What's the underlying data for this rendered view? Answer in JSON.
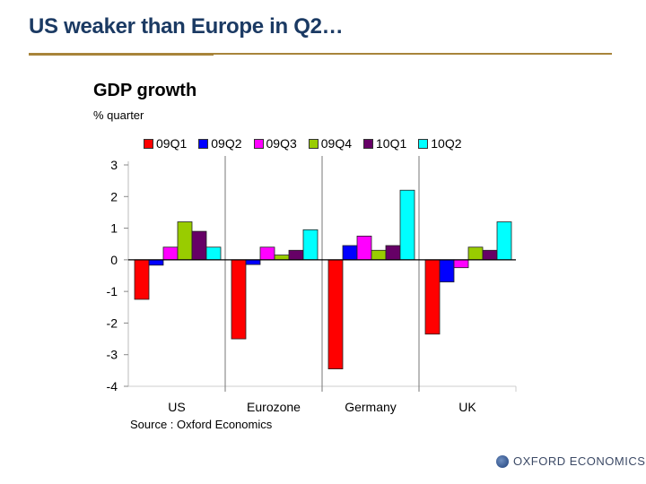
{
  "slide": {
    "title": "US weaker than Europe in Q2…"
  },
  "colors": {
    "title": "#1b3a63",
    "rule": "#a8843a"
  },
  "logo": {
    "icon": "globe-icon",
    "text": "OXFORD ECONOMICS"
  },
  "chart_data": {
    "type": "bar",
    "title": "GDP growth",
    "subtitle": "% quarter",
    "xlabel": "",
    "ylabel": "",
    "categories": [
      "US",
      "Eurozone",
      "Germany",
      "UK"
    ],
    "ylim": [
      -4,
      3
    ],
    "yticks": [
      "3",
      "2",
      "1",
      "0",
      "-1",
      "-2",
      "-3",
      "-4"
    ],
    "ytick_values": [
      3,
      2,
      1,
      0,
      -1,
      -2,
      -3,
      -4
    ],
    "legend_position": "top",
    "grid": false,
    "series": [
      {
        "name": "09Q1",
        "color": "#ff0000",
        "values": [
          -1.25,
          -2.5,
          -3.45,
          -2.35
        ]
      },
      {
        "name": "09Q2",
        "color": "#0000ff",
        "values": [
          -0.17,
          -0.15,
          0.45,
          -0.7
        ]
      },
      {
        "name": "09Q3",
        "color": "#ff00ff",
        "values": [
          0.4,
          0.4,
          0.75,
          -0.25
        ]
      },
      {
        "name": "09Q4",
        "color": "#99cc00",
        "values": [
          1.2,
          0.15,
          0.3,
          0.4
        ]
      },
      {
        "name": "10Q1",
        "color": "#660066",
        "values": [
          0.9,
          0.3,
          0.45,
          0.3
        ]
      },
      {
        "name": "10Q2",
        "color": "#00ffff",
        "values": [
          0.4,
          0.95,
          2.2,
          1.2
        ]
      }
    ],
    "source": "Source : Oxford Economics"
  }
}
